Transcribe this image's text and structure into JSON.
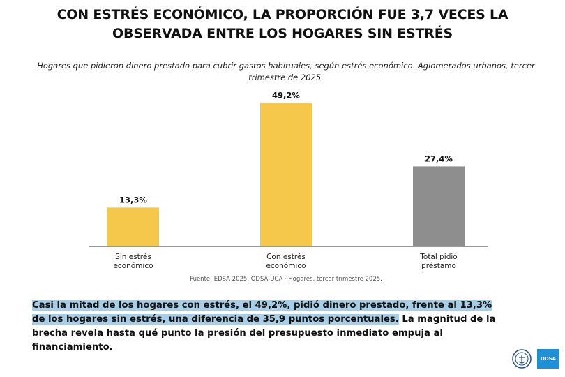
{
  "title": "CON ESTRÉS ECONÓMICO, LA PROPORCIÓN FUE 3,7 VECES LA OBSERVADA ENTRE LOS HOGARES SIN ESTRÉS",
  "subtitle": "Hogares que pidieron dinero prestado para cubrir gastos habituales, según estrés económico. Aglomerados urbanos, tercer trimestre de 2025.",
  "chart_data": {
    "type": "bar",
    "categories": [
      "Sin estrés económico",
      "Con estrés económico",
      "Total pidió préstamo"
    ],
    "category_lines": [
      [
        "Sin estrés",
        "económico"
      ],
      [
        "Con estrés",
        "económico"
      ],
      [
        "Total pidió",
        "préstamo"
      ]
    ],
    "values": [
      13.3,
      49.2,
      27.4
    ],
    "value_labels": [
      "13,3%",
      "49,2%",
      "27,4%"
    ],
    "colors": [
      "#f5c84c",
      "#f5c84c",
      "#8e8e8e"
    ],
    "ylim": [
      0,
      55
    ],
    "grid": false,
    "legend": "none"
  },
  "source": "Fuente: EDSA 2025, ODSA-UCA · Hogares, tercer trimestre 2025.",
  "body": {
    "highlight": "Casi la mitad de los hogares con estrés, el 49,2%, pidió dinero prestado, frente al 13,3% de los hogares sin estrés, una diferencia de 35,9 puntos porcentuales.",
    "rest": " La magnitud de la brecha revela hasta qué punto la presión del presupuesto inmediato empuja al financiamiento."
  },
  "logos": {
    "seal_icon": "uca-seal-icon",
    "odsa_label": "ODSA"
  }
}
